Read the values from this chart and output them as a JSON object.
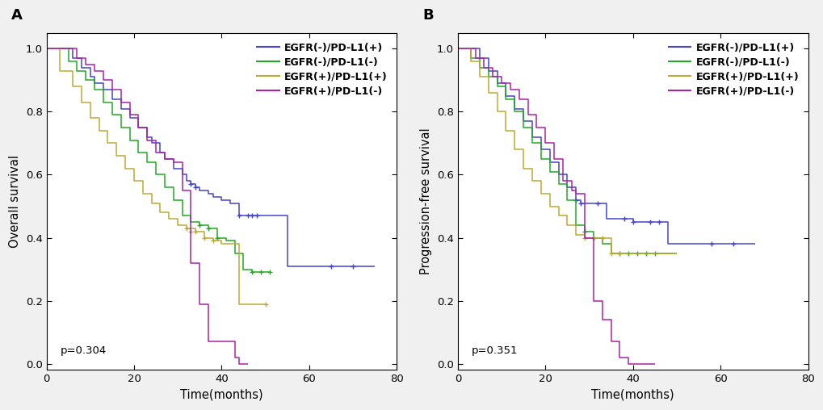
{
  "panel_A": {
    "title_label": "A",
    "ylabel": "Overall survival",
    "xlabel": "Time(months)",
    "pvalue": "p=0.304",
    "xlim": [
      0,
      80
    ],
    "ylim": [
      -0.02,
      1.05
    ],
    "xticks": [
      0,
      20,
      40,
      60,
      80
    ],
    "yticks": [
      0.0,
      0.2,
      0.4,
      0.6,
      0.8,
      1.0
    ],
    "curves": {
      "blue": {
        "label": "EGFR(-)/PD-L1(+)",
        "color": "#4444cc",
        "times": [
          0,
          4,
          6,
          8,
          10,
          11,
          13,
          15,
          17,
          19,
          21,
          23,
          24,
          26,
          27,
          29,
          31,
          32,
          33,
          34,
          35,
          37,
          38,
          40,
          42,
          44,
          46,
          48,
          50,
          52,
          55,
          60,
          65,
          70,
          75
        ],
        "surv": [
          1.0,
          1.0,
          0.97,
          0.94,
          0.91,
          0.89,
          0.87,
          0.84,
          0.81,
          0.78,
          0.75,
          0.72,
          0.7,
          0.67,
          0.65,
          0.62,
          0.6,
          0.58,
          0.57,
          0.56,
          0.55,
          0.54,
          0.53,
          0.52,
          0.51,
          0.47,
          0.47,
          0.47,
          0.47,
          0.47,
          0.31,
          0.31,
          0.31,
          0.31,
          0.31
        ],
        "censor_times": [
          33,
          34,
          44,
          46,
          47,
          48,
          65,
          70
        ],
        "censor_surv": [
          0.57,
          0.56,
          0.47,
          0.47,
          0.47,
          0.47,
          0.31,
          0.31
        ]
      },
      "green": {
        "label": "EGFR(-)/PD-L1(-)",
        "color": "#22aa22",
        "times": [
          0,
          3,
          5,
          7,
          9,
          11,
          13,
          15,
          17,
          19,
          21,
          23,
          25,
          27,
          29,
          31,
          33,
          35,
          37,
          39,
          41,
          43,
          45,
          47,
          49,
          51
        ],
        "surv": [
          1.0,
          1.0,
          0.96,
          0.93,
          0.9,
          0.87,
          0.83,
          0.79,
          0.75,
          0.71,
          0.67,
          0.64,
          0.6,
          0.56,
          0.52,
          0.47,
          0.45,
          0.44,
          0.43,
          0.4,
          0.39,
          0.35,
          0.3,
          0.29,
          0.29,
          0.29
        ],
        "censor_times": [
          35,
          37,
          39,
          47,
          49,
          51
        ],
        "censor_surv": [
          0.44,
          0.43,
          0.4,
          0.29,
          0.29,
          0.29
        ]
      },
      "yellow": {
        "label": "EGFR(+)/PD-L1(+)",
        "color": "#bbaa33",
        "times": [
          0,
          3,
          6,
          8,
          10,
          12,
          14,
          16,
          18,
          20,
          22,
          24,
          26,
          28,
          30,
          32,
          34,
          36,
          38,
          40,
          42,
          44,
          46,
          48,
          50
        ],
        "surv": [
          1.0,
          0.93,
          0.88,
          0.83,
          0.78,
          0.74,
          0.7,
          0.66,
          0.62,
          0.58,
          0.54,
          0.51,
          0.48,
          0.46,
          0.44,
          0.43,
          0.42,
          0.4,
          0.39,
          0.38,
          0.38,
          0.19,
          0.19,
          0.19,
          0.19
        ],
        "censor_times": [
          32,
          33,
          34,
          36,
          38,
          50
        ],
        "censor_surv": [
          0.43,
          0.42,
          0.42,
          0.4,
          0.39,
          0.19
        ]
      },
      "purple": {
        "label": "EGFR(+)/PD-L1(-)",
        "color": "#aa22aa",
        "times": [
          0,
          3,
          5,
          7,
          9,
          11,
          13,
          15,
          17,
          19,
          21,
          23,
          25,
          27,
          29,
          31,
          33,
          35,
          37,
          39,
          41,
          43,
          44,
          46
        ],
        "surv": [
          1.0,
          1.0,
          1.0,
          0.97,
          0.95,
          0.93,
          0.9,
          0.87,
          0.83,
          0.79,
          0.75,
          0.71,
          0.67,
          0.65,
          0.64,
          0.55,
          0.32,
          0.19,
          0.07,
          0.07,
          0.07,
          0.02,
          0.0,
          0.0
        ],
        "censor_times": [],
        "censor_surv": []
      }
    }
  },
  "panel_B": {
    "title_label": "B",
    "ylabel": "Progression-free survival",
    "xlabel": "Time(months)",
    "pvalue": "p=0.351",
    "xlim": [
      0,
      80
    ],
    "ylim": [
      -0.02,
      1.05
    ],
    "xticks": [
      0,
      20,
      40,
      60,
      80
    ],
    "yticks": [
      0.0,
      0.2,
      0.4,
      0.6,
      0.8,
      1.0
    ],
    "curves": {
      "blue": {
        "label": "EGFR(-)/PD-L1(+)",
        "color": "#4444cc",
        "times": [
          0,
          3,
          5,
          7,
          9,
          11,
          13,
          15,
          17,
          19,
          21,
          23,
          25,
          27,
          28,
          30,
          32,
          34,
          36,
          38,
          40,
          42,
          44,
          46,
          48,
          52,
          58,
          63,
          68
        ],
        "surv": [
          1.0,
          1.0,
          0.97,
          0.93,
          0.89,
          0.85,
          0.81,
          0.77,
          0.72,
          0.68,
          0.64,
          0.6,
          0.56,
          0.52,
          0.51,
          0.51,
          0.51,
          0.46,
          0.46,
          0.46,
          0.45,
          0.45,
          0.45,
          0.45,
          0.38,
          0.38,
          0.38,
          0.38,
          0.38
        ],
        "censor_times": [
          27,
          28,
          32,
          38,
          40,
          44,
          46,
          58,
          63
        ],
        "censor_surv": [
          0.52,
          0.51,
          0.51,
          0.46,
          0.45,
          0.45,
          0.45,
          0.38,
          0.38
        ]
      },
      "green": {
        "label": "EGFR(-)/PD-L1(-)",
        "color": "#22aa22",
        "times": [
          0,
          3,
          5,
          7,
          9,
          11,
          13,
          15,
          17,
          19,
          21,
          23,
          25,
          27,
          29,
          31,
          33,
          35,
          37,
          39,
          41,
          43,
          45,
          47,
          50
        ],
        "surv": [
          1.0,
          0.97,
          0.94,
          0.91,
          0.88,
          0.84,
          0.8,
          0.75,
          0.7,
          0.65,
          0.61,
          0.57,
          0.52,
          0.44,
          0.42,
          0.4,
          0.38,
          0.35,
          0.35,
          0.35,
          0.35,
          0.35,
          0.35,
          0.35,
          0.35
        ],
        "censor_times": [
          29,
          31,
          37,
          39,
          41,
          43,
          45
        ],
        "censor_surv": [
          0.42,
          0.4,
          0.35,
          0.35,
          0.35,
          0.35,
          0.35
        ]
      },
      "yellow": {
        "label": "EGFR(+)/PD-L1(+)",
        "color": "#bbaa33",
        "times": [
          0,
          3,
          5,
          7,
          9,
          11,
          13,
          15,
          17,
          19,
          21,
          23,
          25,
          27,
          29,
          31,
          33,
          35,
          37,
          39,
          41,
          43,
          45,
          50
        ],
        "surv": [
          1.0,
          0.96,
          0.91,
          0.86,
          0.8,
          0.74,
          0.68,
          0.62,
          0.58,
          0.54,
          0.5,
          0.47,
          0.44,
          0.41,
          0.4,
          0.4,
          0.4,
          0.35,
          0.35,
          0.35,
          0.35,
          0.35,
          0.35,
          0.35
        ],
        "censor_times": [
          29,
          31,
          33,
          35,
          37
        ],
        "censor_surv": [
          0.4,
          0.4,
          0.4,
          0.35,
          0.35
        ]
      },
      "purple": {
        "label": "EGFR(+)/PD-L1(-)",
        "color": "#aa22aa",
        "times": [
          0,
          2,
          4,
          6,
          8,
          10,
          12,
          14,
          16,
          18,
          20,
          22,
          24,
          26,
          27,
          29,
          31,
          33,
          35,
          37,
          39,
          41,
          43,
          45
        ],
        "surv": [
          1.0,
          1.0,
          0.97,
          0.94,
          0.91,
          0.89,
          0.87,
          0.84,
          0.79,
          0.75,
          0.7,
          0.65,
          0.58,
          0.55,
          0.54,
          0.4,
          0.2,
          0.14,
          0.07,
          0.02,
          0.0,
          0.0,
          0.0,
          0.0
        ],
        "censor_times": [],
        "censor_surv": []
      }
    }
  },
  "bg_color": "#f0f0f0",
  "plot_bg": "#ffffff",
  "font_size": 9.5,
  "label_fontsize": 10.5,
  "title_fontsize": 13
}
